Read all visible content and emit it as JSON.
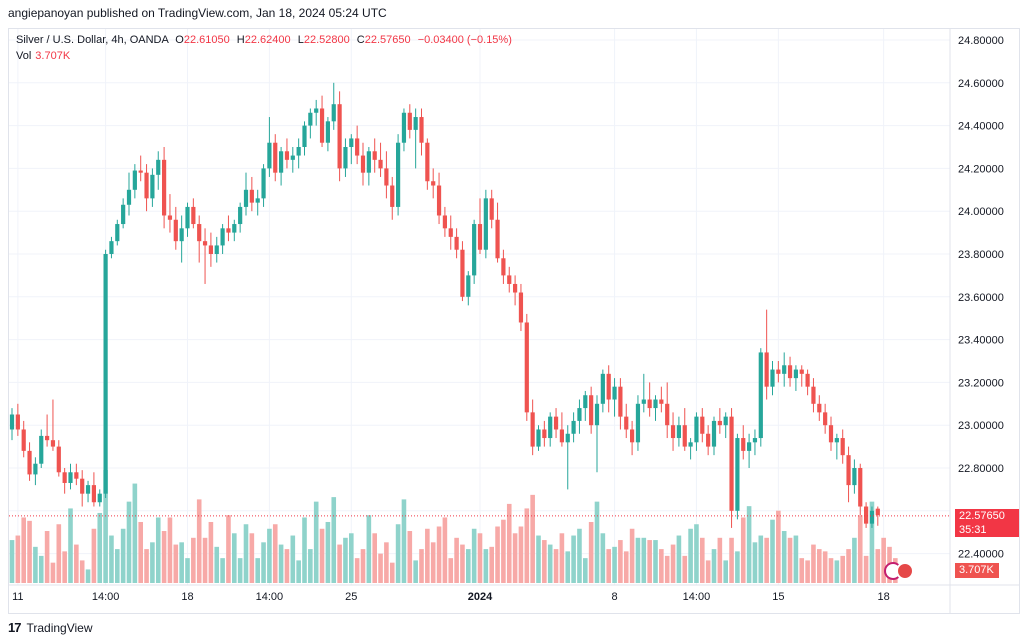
{
  "header": {
    "published": "angiepanoyan published on TradingView.com, Jan 18, 2024 05:24 UTC"
  },
  "legend": {
    "symbol": "Silver / U.S. Dollar, 4h, OANDA",
    "open_label": "O",
    "open": "22.61050",
    "high_label": "H",
    "high": "22.62400",
    "low_label": "L",
    "low": "22.52800",
    "close_label": "C",
    "close": "22.57650",
    "change": "−0.03400 (−0.15%)",
    "vol_label": "Vol",
    "vol": "3.707K"
  },
  "price_badge": {
    "price": "22.57650",
    "countdown": "35:31"
  },
  "volume_badge": "3.707K",
  "footer": {
    "brand": "TradingView"
  },
  "colors": {
    "up": "#26a69a",
    "down": "#ef5350",
    "up_vol": "#8fd3cb",
    "down_vol": "#f7a9a7",
    "grid": "#f0f3fa",
    "price_line": "#f23645"
  },
  "chart_data": {
    "type": "candlestick",
    "title": "Silver / U.S. Dollar, 4h, OANDA",
    "ylim": [
      22.4,
      24.8
    ],
    "y_ticks": [
      "24.80000",
      "24.60000",
      "24.40000",
      "24.20000",
      "24.00000",
      "23.80000",
      "23.60000",
      "23.40000",
      "23.20000",
      "23.00000",
      "22.80000",
      "22.40000"
    ],
    "x_ticks": [
      {
        "i": 1,
        "label": "11"
      },
      {
        "i": 16,
        "label": "14:00"
      },
      {
        "i": 30,
        "label": "18"
      },
      {
        "i": 44,
        "label": "14:00"
      },
      {
        "i": 58,
        "label": "25"
      },
      {
        "i": 80,
        "label": "2024"
      },
      {
        "i": 103,
        "label": "8"
      },
      {
        "i": 117,
        "label": "14:00"
      },
      {
        "i": 131,
        "label": "15"
      },
      {
        "i": 149,
        "label": "18"
      }
    ],
    "current_price": 22.5765,
    "ohlc": [
      [
        22.98,
        23.08,
        22.93,
        23.05
      ],
      [
        23.05,
        23.1,
        22.95,
        22.98
      ],
      [
        22.98,
        23.02,
        22.85,
        22.88
      ],
      [
        22.88,
        22.92,
        22.74,
        22.77
      ],
      [
        22.77,
        22.85,
        22.72,
        22.82
      ],
      [
        22.82,
        22.98,
        22.8,
        22.95
      ],
      [
        22.95,
        23.05,
        22.9,
        22.93
      ],
      [
        22.93,
        23.12,
        22.88,
        22.9
      ],
      [
        22.9,
        22.93,
        22.76,
        22.78
      ],
      [
        22.78,
        22.8,
        22.68,
        22.73
      ],
      [
        22.73,
        22.82,
        22.7,
        22.78
      ],
      [
        22.78,
        22.82,
        22.72,
        22.75
      ],
      [
        22.75,
        22.79,
        22.62,
        22.68
      ],
      [
        22.68,
        22.74,
        22.64,
        22.72
      ],
      [
        22.72,
        22.78,
        22.62,
        22.64
      ],
      [
        22.64,
        22.7,
        22.62,
        22.68
      ],
      [
        22.68,
        23.82,
        22.66,
        23.8
      ],
      [
        23.8,
        23.88,
        23.78,
        23.86
      ],
      [
        23.86,
        23.96,
        23.84,
        23.94
      ],
      [
        23.94,
        24.06,
        23.92,
        24.03
      ],
      [
        24.03,
        24.18,
        23.98,
        24.1
      ],
      [
        24.1,
        24.22,
        24.06,
        24.19
      ],
      [
        24.19,
        24.26,
        24.14,
        24.18
      ],
      [
        24.18,
        24.22,
        24.0,
        24.06
      ],
      [
        24.06,
        24.2,
        24.02,
        24.17
      ],
      [
        24.17,
        24.28,
        24.1,
        24.24
      ],
      [
        24.24,
        24.3,
        23.92,
        23.98
      ],
      [
        23.98,
        24.08,
        23.9,
        23.96
      ],
      [
        23.96,
        24.02,
        23.82,
        23.86
      ],
      [
        23.86,
        23.98,
        23.76,
        23.92
      ],
      [
        23.92,
        24.04,
        23.88,
        24.02
      ],
      [
        24.02,
        24.06,
        23.92,
        23.94
      ],
      [
        23.94,
        23.98,
        23.76,
        23.86
      ],
      [
        23.86,
        23.92,
        23.66,
        23.84
      ],
      [
        23.84,
        23.9,
        23.74,
        23.8
      ],
      [
        23.8,
        23.88,
        23.76,
        23.84
      ],
      [
        23.84,
        23.94,
        23.8,
        23.92
      ],
      [
        23.92,
        23.98,
        23.86,
        23.9
      ],
      [
        23.9,
        23.96,
        23.86,
        23.94
      ],
      [
        23.94,
        24.04,
        23.9,
        24.02
      ],
      [
        24.02,
        24.18,
        23.98,
        24.1
      ],
      [
        24.1,
        24.16,
        24.0,
        24.04
      ],
      [
        24.04,
        24.1,
        23.98,
        24.06
      ],
      [
        24.06,
        24.22,
        24.02,
        24.2
      ],
      [
        24.2,
        24.44,
        24.16,
        24.32
      ],
      [
        24.32,
        24.36,
        24.14,
        24.18
      ],
      [
        24.18,
        24.3,
        24.12,
        24.28
      ],
      [
        24.28,
        24.34,
        24.2,
        24.24
      ],
      [
        24.24,
        24.3,
        24.18,
        24.26
      ],
      [
        24.26,
        24.34,
        24.2,
        24.3
      ],
      [
        24.3,
        24.42,
        24.26,
        24.4
      ],
      [
        24.4,
        24.48,
        24.34,
        24.46
      ],
      [
        24.46,
        24.52,
        24.4,
        24.48
      ],
      [
        24.48,
        24.54,
        24.3,
        24.32
      ],
      [
        24.32,
        24.44,
        24.28,
        24.42
      ],
      [
        24.42,
        24.6,
        24.38,
        24.5
      ],
      [
        24.5,
        24.56,
        24.14,
        24.2
      ],
      [
        24.2,
        24.34,
        24.16,
        24.3
      ],
      [
        24.3,
        24.36,
        24.22,
        24.34
      ],
      [
        24.34,
        24.4,
        24.22,
        24.26
      ],
      [
        24.26,
        24.32,
        24.12,
        24.18
      ],
      [
        24.18,
        24.3,
        24.12,
        24.28
      ],
      [
        24.28,
        24.34,
        24.18,
        24.24
      ],
      [
        24.24,
        24.32,
        24.16,
        24.2
      ],
      [
        24.2,
        24.28,
        24.06,
        24.12
      ],
      [
        24.12,
        24.16,
        23.96,
        24.02
      ],
      [
        24.02,
        24.36,
        23.98,
        24.32
      ],
      [
        24.32,
        24.48,
        24.28,
        24.46
      ],
      [
        24.46,
        24.5,
        24.34,
        24.38
      ],
      [
        24.38,
        24.48,
        24.2,
        24.44
      ],
      [
        24.44,
        24.48,
        24.26,
        24.32
      ],
      [
        24.32,
        24.34,
        24.1,
        24.14
      ],
      [
        24.14,
        24.2,
        24.06,
        24.12
      ],
      [
        24.12,
        24.18,
        23.94,
        23.98
      ],
      [
        23.98,
        24.02,
        23.88,
        23.92
      ],
      [
        23.92,
        23.98,
        23.82,
        23.88
      ],
      [
        23.88,
        23.92,
        23.78,
        23.82
      ],
      [
        23.82,
        23.86,
        23.58,
        23.6
      ],
      [
        23.6,
        23.72,
        23.56,
        23.7
      ],
      [
        23.7,
        23.96,
        23.66,
        23.94
      ],
      [
        23.94,
        24.06,
        23.8,
        23.82
      ],
      [
        23.82,
        24.1,
        23.78,
        24.06
      ],
      [
        24.06,
        24.1,
        23.92,
        23.96
      ],
      [
        23.96,
        24.04,
        23.76,
        23.78
      ],
      [
        23.78,
        23.82,
        23.66,
        23.7
      ],
      [
        23.7,
        23.74,
        23.62,
        23.66
      ],
      [
        23.66,
        23.7,
        23.56,
        23.62
      ],
      [
        23.62,
        23.66,
        23.44,
        23.48
      ],
      [
        23.48,
        23.52,
        23.02,
        23.06
      ],
      [
        23.06,
        23.12,
        22.86,
        22.9
      ],
      [
        22.9,
        23.0,
        22.88,
        22.98
      ],
      [
        22.98,
        23.02,
        22.9,
        22.94
      ],
      [
        22.94,
        23.06,
        22.9,
        23.04
      ],
      [
        23.04,
        23.08,
        22.94,
        22.98
      ],
      [
        22.98,
        23.06,
        22.9,
        22.92
      ],
      [
        22.92,
        23.0,
        22.7,
        22.96
      ],
      [
        22.96,
        23.06,
        22.92,
        23.02
      ],
      [
        23.02,
        23.12,
        22.96,
        23.08
      ],
      [
        23.08,
        23.16,
        23.02,
        23.14
      ],
      [
        23.14,
        23.18,
        22.96,
        23.0
      ],
      [
        23.0,
        23.14,
        22.78,
        23.1
      ],
      [
        23.1,
        23.26,
        23.06,
        23.24
      ],
      [
        23.24,
        23.28,
        23.06,
        23.12
      ],
      [
        23.12,
        23.22,
        23.04,
        23.18
      ],
      [
        23.18,
        23.22,
        22.98,
        23.04
      ],
      [
        23.04,
        23.1,
        22.94,
        22.98
      ],
      [
        22.98,
        23.02,
        22.86,
        22.92
      ],
      [
        22.92,
        23.14,
        22.88,
        23.1
      ],
      [
        23.1,
        23.24,
        23.06,
        23.12
      ],
      [
        23.12,
        23.2,
        23.04,
        23.08
      ],
      [
        23.08,
        23.14,
        23.02,
        23.12
      ],
      [
        23.12,
        23.18,
        23.06,
        23.1
      ],
      [
        23.1,
        23.2,
        22.94,
        23.0
      ],
      [
        23.0,
        23.06,
        22.88,
        22.94
      ],
      [
        22.94,
        23.04,
        22.9,
        23.0
      ],
      [
        23.0,
        23.08,
        22.88,
        22.9
      ],
      [
        22.9,
        22.94,
        22.84,
        22.92
      ],
      [
        22.92,
        23.06,
        22.88,
        23.04
      ],
      [
        23.04,
        23.08,
        22.92,
        22.96
      ],
      [
        22.96,
        23.0,
        22.86,
        22.9
      ],
      [
        22.9,
        23.04,
        22.86,
        23.02
      ],
      [
        23.02,
        23.08,
        22.96,
        23.0
      ],
      [
        23.0,
        23.06,
        22.94,
        23.04
      ],
      [
        23.04,
        23.08,
        22.52,
        22.6
      ],
      [
        22.6,
        22.96,
        22.56,
        22.94
      ],
      [
        22.94,
        23.0,
        22.84,
        22.88
      ],
      [
        22.88,
        22.96,
        22.8,
        22.92
      ],
      [
        22.92,
        22.98,
        22.86,
        22.94
      ],
      [
        22.94,
        23.36,
        22.9,
        23.34
      ],
      [
        23.34,
        23.54,
        23.12,
        23.18
      ],
      [
        23.18,
        23.3,
        23.14,
        23.26
      ],
      [
        23.26,
        23.3,
        23.2,
        23.24
      ],
      [
        23.24,
        23.34,
        23.18,
        23.28
      ],
      [
        23.28,
        23.32,
        23.18,
        23.22
      ],
      [
        23.22,
        23.28,
        23.16,
        23.26
      ],
      [
        23.26,
        23.28,
        23.18,
        23.24
      ],
      [
        23.24,
        23.26,
        23.14,
        23.18
      ],
      [
        23.18,
        23.22,
        23.06,
        23.1
      ],
      [
        23.1,
        23.14,
        23.02,
        23.06
      ],
      [
        23.06,
        23.1,
        22.96,
        23.0
      ],
      [
        23.0,
        23.04,
        22.88,
        22.92
      ],
      [
        22.92,
        22.96,
        22.84,
        22.94
      ],
      [
        22.94,
        22.98,
        22.82,
        22.86
      ],
      [
        22.86,
        22.9,
        22.64,
        22.72
      ],
      [
        22.72,
        22.84,
        22.68,
        22.8
      ],
      [
        22.8,
        22.82,
        22.58,
        22.62
      ],
      [
        22.62,
        22.64,
        22.52,
        22.54
      ],
      [
        22.54,
        22.62,
        22.52,
        22.6
      ],
      [
        22.61,
        22.62,
        22.53,
        22.58
      ]
    ],
    "volume": [
      0.38,
      0.42,
      0.58,
      0.55,
      0.32,
      0.24,
      0.46,
      0.18,
      0.52,
      0.28,
      0.66,
      0.34,
      0.2,
      0.12,
      0.48,
      0.62,
      1.0,
      0.42,
      0.3,
      0.48,
      0.72,
      0.88,
      0.54,
      0.3,
      0.36,
      0.58,
      0.46,
      0.58,
      0.34,
      0.36,
      0.22,
      0.4,
      0.74,
      0.4,
      0.54,
      0.32,
      0.22,
      0.6,
      0.44,
      0.22,
      0.52,
      0.44,
      0.22,
      0.36,
      0.48,
      0.52,
      0.34,
      0.3,
      0.42,
      0.2,
      0.58,
      0.3,
      0.72,
      0.48,
      0.54,
      0.76,
      0.34,
      0.4,
      0.44,
      0.22,
      0.3,
      0.6,
      0.44,
      0.26,
      0.36,
      0.18,
      0.52,
      0.74,
      0.46,
      0.2,
      0.3,
      0.48,
      0.36,
      0.5,
      0.58,
      0.22,
      0.4,
      0.34,
      0.3,
      0.48,
      0.44,
      0.3,
      0.32,
      0.5,
      0.56,
      0.7,
      0.44,
      0.5,
      0.66,
      0.78,
      0.42,
      0.38,
      0.34,
      0.3,
      0.44,
      0.28,
      0.42,
      0.48,
      0.22,
      0.54,
      0.72,
      0.44,
      0.3,
      0.32,
      0.38,
      0.28,
      0.48,
      0.4,
      0.4,
      0.38,
      0.38,
      0.3,
      0.24,
      0.34,
      0.42,
      0.24,
      0.48,
      0.52,
      0.4,
      0.2,
      0.3,
      0.4,
      0.2,
      0.4,
      0.28,
      0.58,
      0.68,
      0.36,
      0.42,
      0.4,
      0.56,
      0.64,
      0.46,
      0.4,
      0.42,
      0.22,
      0.2,
      0.34,
      0.3,
      0.28,
      0.22,
      0.2,
      0.24,
      0.3,
      0.4,
      0.6,
      0.24,
      0.72,
      0.3,
      0.4,
      0.32,
      0.22
    ]
  }
}
